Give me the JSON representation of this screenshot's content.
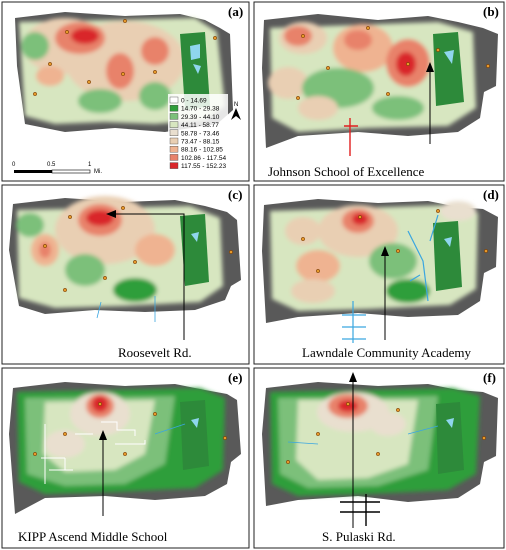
{
  "panels": [
    {
      "id": "a",
      "letter": "(a)",
      "caption": ""
    },
    {
      "id": "b",
      "letter": "(b)",
      "caption": "Johnson School of Excellence"
    },
    {
      "id": "c",
      "letter": "(c)",
      "caption": "Roosevelt Rd."
    },
    {
      "id": "d",
      "letter": "(d)",
      "caption": "Lawndale Community Academy"
    },
    {
      "id": "e",
      "letter": "(e)",
      "caption": "KIPP Ascend Middle School"
    },
    {
      "id": "f",
      "letter": "(f)",
      "caption": "S. Pulaski Rd."
    }
  ],
  "legend": {
    "items": [
      {
        "label": "0 - 14.69",
        "color": "#ffffff"
      },
      {
        "label": "14.70 - 29.38",
        "color": "#2f9e3a"
      },
      {
        "label": "29.39 - 44.10",
        "color": "#7cc07a"
      },
      {
        "label": "44.11 - 58.77",
        "color": "#d7e6c0"
      },
      {
        "label": "58.78 - 73.46",
        "color": "#e9dfcf"
      },
      {
        "label": "73.47 - 88.15",
        "color": "#e9cfb3"
      },
      {
        "label": "88.16 - 102.85",
        "color": "#efb391"
      },
      {
        "label": "102.86 - 117.54",
        "color": "#e8826b"
      },
      {
        "label": "117.55 - 152.23",
        "color": "#d9262b"
      }
    ]
  },
  "scale_bar": {
    "labels": [
      "0",
      "0.5",
      "1"
    ],
    "unit": "Mi."
  },
  "north": {
    "label": "N"
  },
  "colors": {
    "dark_block": "#595959",
    "park": "#2d8a3a",
    "water": "#8fd6ee",
    "street_red": "#e02020",
    "street_blue": "#3aa6e0",
    "street_white": "#ffffff"
  }
}
